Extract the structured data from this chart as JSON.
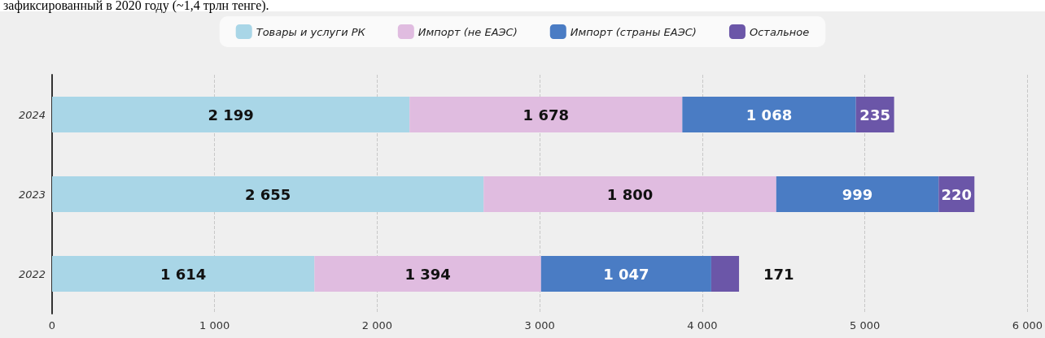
{
  "chart_data": {
    "type": "bar",
    "orientation": "horizontal",
    "stacked": true,
    "categories": [
      "2024",
      "2023",
      "2022"
    ],
    "series": [
      {
        "name": "Товары и услуги РК",
        "color": "#a9d6e7",
        "values": [
          2199,
          2655,
          1614
        ]
      },
      {
        "name": "Импорт (не ЕАЭС)",
        "color": "#e0bce0",
        "values": [
          1678,
          1800,
          1394
        ]
      },
      {
        "name": "Импорт (страны ЕАЭС)",
        "color": "#4a7cc4",
        "values": [
          1068,
          999,
          1047
        ]
      },
      {
        "name": "Остальное",
        "color": "#6b56a8",
        "values": [
          235,
          220,
          171
        ]
      }
    ],
    "xlim": [
      0,
      6000
    ],
    "xticks": [
      0,
      {
        "value": 1000,
        "label": "1 000"
      },
      {
        "value": 2000,
        "label": "2 000"
      },
      {
        "value": 3000,
        "label": "3 000"
      },
      {
        "value": 4000,
        "label": "4 000"
      },
      {
        "value": 5000,
        "label": "5 000"
      },
      {
        "value": 6000,
        "label": "6 000"
      }
    ],
    "grid": "x",
    "legend": "top",
    "data_labels": true,
    "annotations": [
      "зафиксированный в 2020 году (~1,4 трлн тенге)."
    ]
  }
}
